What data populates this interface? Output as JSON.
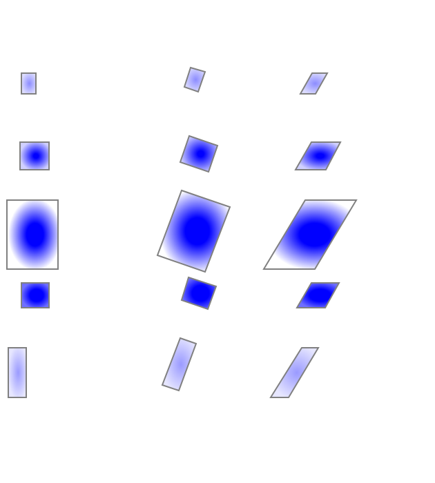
{
  "colors": {
    "stroke": "#808080",
    "center": "#0000ff",
    "edge_light": "#ffffff"
  },
  "gradient_styles": [
    {
      "row": 1,
      "inner": "#8c8cff",
      "outer": "#dcdcff",
      "inner_stop": 0.0,
      "mid_stop": 1.0
    },
    {
      "row": 2,
      "inner": "#0000ff",
      "outer": "#d0d0ff",
      "inner_stop": 0.15,
      "mid_stop": 1.0
    },
    {
      "row": 3,
      "inner": "#0000ff",
      "outer": "#ffffff",
      "inner_stop": 0.3,
      "mid_stop": 0.95
    },
    {
      "row": 4,
      "inner": "#0000ff",
      "outer": "#6f6fff",
      "inner_stop": 0.45,
      "mid_stop": 1.0
    },
    {
      "row": 5,
      "inner": "#9a9aff",
      "outer": "#e6e6ff",
      "inner_stop": 0.0,
      "mid_stop": 1.0
    }
  ],
  "columns": [
    "plain",
    "rotated",
    "skewed"
  ]
}
